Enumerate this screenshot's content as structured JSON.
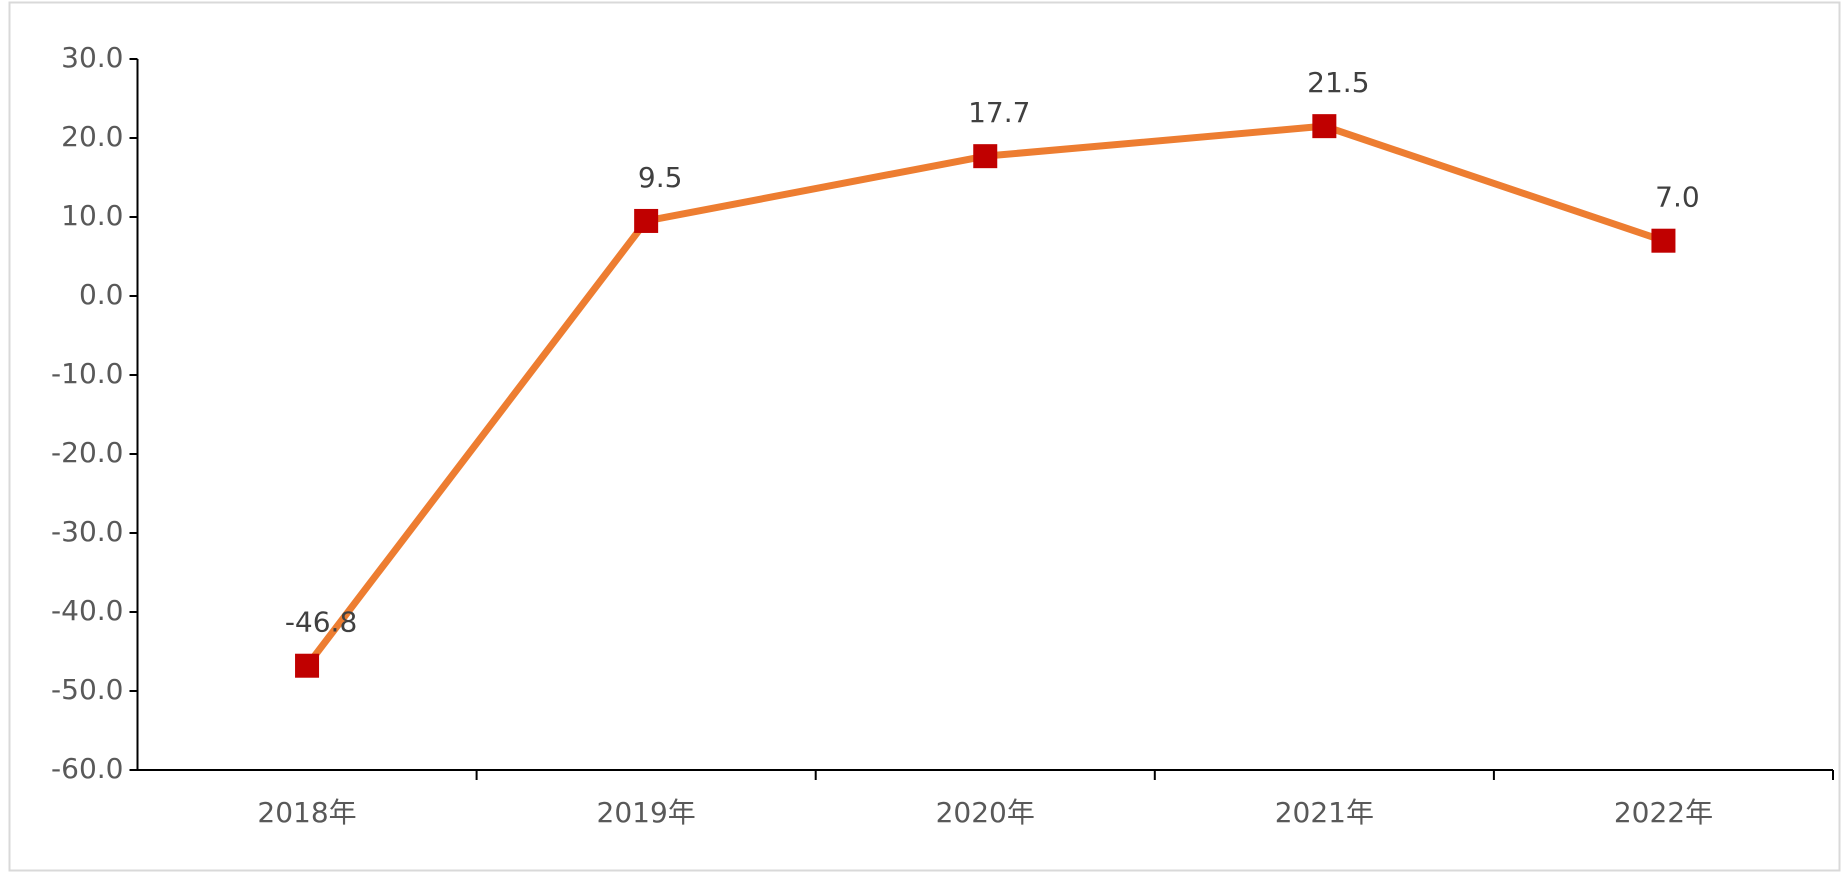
{
  "chart_data": {
    "type": "line",
    "categories": [
      "2018年",
      "2019年",
      "2020年",
      "2021年",
      "2022年"
    ],
    "series": [
      {
        "name": null,
        "color": "#ED7D31",
        "marker_color": "#C00000",
        "values": [
          -46.8,
          9.5,
          17.7,
          21.5,
          7.0
        ],
        "value_labels": [
          "-46.8",
          "9.5",
          "17.7",
          "21.5",
          "7.0"
        ]
      }
    ],
    "ylim": [
      -60,
      30
    ],
    "yticks": [
      {
        "value": -60,
        "label": "-60.0"
      },
      {
        "value": -50,
        "label": "-50.0"
      },
      {
        "value": -40,
        "label": "-40.0"
      },
      {
        "value": -30,
        "label": "-30.0"
      },
      {
        "value": -20,
        "label": "-20.0"
      },
      {
        "value": -10,
        "label": "-10.0"
      },
      {
        "value": 0,
        "label": "0.0"
      },
      {
        "value": 10,
        "label": "10.0"
      },
      {
        "value": 20,
        "label": "20.0"
      },
      {
        "value": 30,
        "label": "30.0"
      }
    ],
    "grid": false
  }
}
